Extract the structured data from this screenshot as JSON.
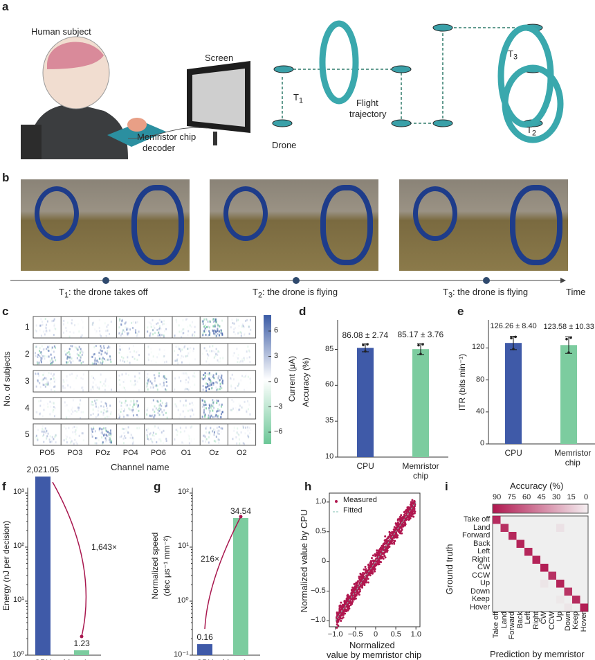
{
  "panel_labels": [
    "a",
    "b",
    "c",
    "d",
    "e",
    "f",
    "g",
    "h",
    "i"
  ],
  "panel_a": {
    "human_subject": "Human subject",
    "screen": "Screen",
    "chip": "Memristor chip",
    "decoder": "decoder",
    "drone": "Drone",
    "flight": "Flight",
    "trajectory": "trajectory",
    "t1": "T",
    "t1_sub": "1",
    "t2": "T",
    "t2_sub": "2",
    "t3": "T",
    "t3_sub": "3"
  },
  "panel_b": {
    "events": [
      {
        "t": "T",
        "sub": "1",
        "text": ": the drone takes off"
      },
      {
        "t": "T",
        "sub": "2",
        "text": ": the drone is flying"
      },
      {
        "t": "T",
        "sub": "3",
        "text": ": the drone is flying"
      }
    ],
    "time_label": "Time"
  },
  "chart_data": [
    {
      "panel": "c",
      "type": "heatmap",
      "ylabel": "No. of subjects",
      "xlabel": "Channel name",
      "colorbar_label": "Current (μA)",
      "colorbar_ticks": [
        "6",
        "3",
        "0",
        "−3",
        "−6"
      ],
      "colorbar_range": [
        -7.5,
        7.5
      ],
      "rows": [
        "1",
        "2",
        "3",
        "4",
        "5"
      ],
      "columns": [
        "PO5",
        "PO3",
        "POz",
        "PO4",
        "PO6",
        "O1",
        "Oz",
        "O2"
      ],
      "relative_activity": [
        [
          0.2,
          0.05,
          0.05,
          0.4,
          0.4,
          0.15,
          0.95,
          0.2
        ],
        [
          0.6,
          0.55,
          0.6,
          0.15,
          0.05,
          0.2,
          0.15,
          0.05
        ],
        [
          0.4,
          0.05,
          0.1,
          0.1,
          0.5,
          0.1,
          0.9,
          0.05
        ],
        [
          0.1,
          0.1,
          0.3,
          0.45,
          0.5,
          0.1,
          0.85,
          0.1
        ],
        [
          0.3,
          0.15,
          0.7,
          0.15,
          0.3,
          0.05,
          0.4,
          0.15
        ]
      ],
      "colors": {
        "positive": "#3b5ba5",
        "negative": "#6cc797"
      }
    },
    {
      "panel": "d",
      "type": "bar",
      "categories": [
        "CPU",
        "Memristor chip"
      ],
      "values": [
        86.08,
        85.17
      ],
      "errors": [
        2.74,
        3.76
      ],
      "data_labels": [
        "86.08 ± 2.74",
        "85.17 ± 3.76"
      ],
      "ylabel": "Accuracy (%)",
      "yticks": [
        "10",
        "35",
        "60",
        "85"
      ],
      "ylim": [
        10,
        105
      ],
      "colors": [
        "#3f5aa8",
        "#7ccc9f"
      ]
    },
    {
      "panel": "e",
      "type": "bar",
      "categories": [
        "CPU",
        "Memristor chip"
      ],
      "values": [
        126.26,
        123.58
      ],
      "errors": [
        8.4,
        10.33
      ],
      "data_labels": [
        "126.26 ± 8.40",
        "123.58 ± 10.33"
      ],
      "ylabel": "ITR (bits min⁻¹)",
      "yticks": [
        "0",
        "40",
        "80",
        "120"
      ],
      "ylim": [
        0,
        155
      ],
      "colors": [
        "#3f5aa8",
        "#7ccc9f"
      ]
    },
    {
      "panel": "f",
      "type": "bar",
      "scale": "log",
      "categories": [
        "CPU",
        "Memristor chip"
      ],
      "values": [
        2021.05,
        1.23
      ],
      "data_labels": [
        "2,021.05",
        "1.23"
      ],
      "annotation": "1,643×",
      "ylabel": "Energy (nJ per decision)",
      "yticks": [
        "10⁰",
        "10¹",
        "10²",
        "10³"
      ],
      "ylim": [
        1,
        3000
      ],
      "colors": [
        "#3f5aa8",
        "#7ccc9f"
      ]
    },
    {
      "panel": "g",
      "type": "bar",
      "scale": "log",
      "categories": [
        "CPU",
        "Memristor chip"
      ],
      "values": [
        0.16,
        34.54
      ],
      "data_labels": [
        "0.16",
        "34.54"
      ],
      "annotation": "216×",
      "ylabel": "Normalized speed",
      "ylabel2": "(dec μs⁻¹ mm⁻²)",
      "yticks": [
        "10⁻¹",
        "10⁰",
        "10¹",
        "10²"
      ],
      "ylim": [
        0.1,
        100
      ],
      "colors": [
        "#3f5aa8",
        "#7ccc9f"
      ]
    },
    {
      "panel": "h",
      "type": "scatter",
      "xlabel": "Normalized",
      "xlabel2": "value by memristor chip",
      "ylabel": "Normalized value by CPU",
      "xticks": [
        "−1.0",
        "−0.5",
        "0",
        "0.5",
        "1.0"
      ],
      "yticks": [
        "−1.0",
        "−0.5",
        "0",
        "0.5",
        "1.0"
      ],
      "xlim": [
        -1.15,
        1.1
      ],
      "ylim": [
        -1.1,
        1.15
      ],
      "legend": [
        "Measured",
        "Fitted"
      ],
      "legend_position": "top-left",
      "fit": {
        "slope": 1,
        "intercept": 0
      },
      "colors": {
        "measured": "#b0174f",
        "fitted": "#7fbfb0"
      },
      "points_sample": [
        [
          -0.95,
          -0.98
        ],
        [
          -0.9,
          -0.85
        ],
        [
          -0.82,
          -0.9
        ],
        [
          -0.75,
          -0.7
        ],
        [
          -0.7,
          -0.78
        ],
        [
          -0.62,
          -0.6
        ],
        [
          -0.55,
          -0.5
        ],
        [
          -0.5,
          -0.58
        ],
        [
          -0.42,
          -0.4
        ],
        [
          -0.35,
          -0.3
        ],
        [
          -0.3,
          -0.38
        ],
        [
          -0.22,
          -0.2
        ],
        [
          -0.15,
          -0.1
        ],
        [
          -0.1,
          -0.18
        ],
        [
          -0.02,
          0.0
        ],
        [
          0.05,
          0.1
        ],
        [
          0.1,
          0.05
        ],
        [
          0.18,
          0.2
        ],
        [
          0.25,
          0.3
        ],
        [
          0.3,
          0.22
        ],
        [
          0.38,
          0.4
        ],
        [
          0.45,
          0.5
        ],
        [
          0.5,
          0.42
        ],
        [
          0.58,
          0.6
        ],
        [
          0.65,
          0.7
        ],
        [
          0.7,
          0.62
        ],
        [
          0.78,
          0.8
        ],
        [
          0.85,
          0.9
        ],
        [
          0.9,
          0.85
        ],
        [
          0.97,
          0.95
        ]
      ]
    },
    {
      "panel": "i",
      "type": "heatmap",
      "title": "Accuracy (%)",
      "xlabel": "Prediction by memristor",
      "ylabel": "Ground truth",
      "colorbar_ticks": [
        "90",
        "75",
        "60",
        "45",
        "30",
        "15",
        "0"
      ],
      "colorbar_range": [
        0,
        100
      ],
      "classes": [
        "Take off",
        "Land",
        "Forward",
        "Back",
        "Left",
        "Right",
        "CW",
        "CCW",
        "Up",
        "Down",
        "Keep",
        "Hover"
      ],
      "diagonal": [
        86,
        84,
        88,
        90,
        88,
        90,
        92,
        84,
        90,
        82,
        86,
        92
      ],
      "off_diagonal": [
        {
          "truth": "Land",
          "pred": "Up",
          "value": 6
        },
        {
          "truth": "Up",
          "pred": "CW",
          "value": 4
        },
        {
          "truth": "Keep",
          "pred": "Up",
          "value": 3
        },
        {
          "truth": "Hover",
          "pred": "Down",
          "value": 4
        }
      ],
      "color": "#b0174f"
    }
  ]
}
